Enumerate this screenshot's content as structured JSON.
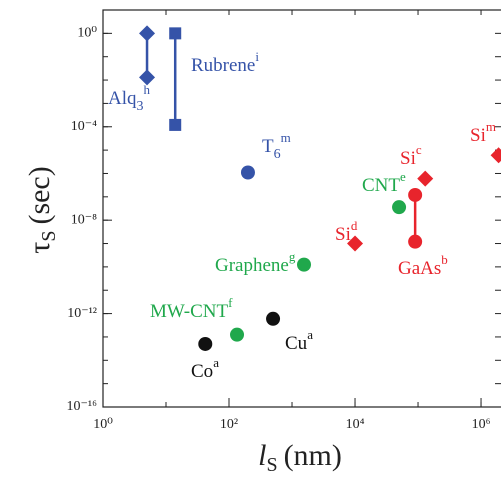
{
  "chart_data": {
    "type": "scatter",
    "log_x": true,
    "log_y": true,
    "x_label": {
      "symbol": "l",
      "subscript": "S",
      "unit": "(nm)"
    },
    "y_label": {
      "symbol": "τ",
      "subscript": "S",
      "unit": "(sec)"
    },
    "xlim": [
      1,
      2000000
    ],
    "ylim": [
      1e-16,
      10
    ],
    "xticks": [
      {
        "value": 1,
        "label": "10⁰"
      },
      {
        "value": 100,
        "label": "10²"
      },
      {
        "value": 10000,
        "label": "10⁴"
      },
      {
        "value": 1000000,
        "label": "10⁶"
      }
    ],
    "yticks": [
      {
        "value": 1,
        "label": "10⁰"
      },
      {
        "value": 0.0001,
        "label": "10⁻⁴"
      },
      {
        "value": 1e-08,
        "label": "10⁻⁸"
      },
      {
        "value": 1e-12,
        "label": "10⁻¹²"
      },
      {
        "value": 1e-16,
        "label": "10⁻¹⁶"
      }
    ],
    "series": [
      {
        "name": "Rubrene",
        "ref": "i",
        "color": "#3553a8",
        "marker": "square",
        "connect": true,
        "x": [
          14,
          14
        ],
        "values": [
          1,
          0.00012
        ]
      },
      {
        "name": "Alq",
        "sub": "3",
        "ref": "h",
        "color": "#3553a8",
        "marker": "diamond",
        "connect": true,
        "x": [
          5,
          5
        ],
        "values": [
          1,
          0.013
        ]
      },
      {
        "name": "T",
        "sub": "6",
        "ref": "m",
        "color": "#3553a8",
        "marker": "circle",
        "x": [
          200
        ],
        "values": [
          1.1e-06
        ]
      },
      {
        "name": "Graphene",
        "ref": "g",
        "color": "#20a84c",
        "marker": "circle",
        "x": [
          1550
        ],
        "values": [
          1.25e-10
        ]
      },
      {
        "name": "MW-CNT",
        "ref": "f",
        "color": "#20a84c",
        "marker": "circle",
        "x": [
          134
        ],
        "values": [
          1.25e-13
        ]
      },
      {
        "name": "Co",
        "ref": "a",
        "color": "#111111",
        "marker": "circle",
        "x": [
          42
        ],
        "values": [
          5e-14
        ]
      },
      {
        "name": "Cu",
        "ref": "a",
        "color": "#111111",
        "marker": "circle",
        "x": [
          500
        ],
        "values": [
          6e-13
        ]
      },
      {
        "name": "CNT",
        "ref": "e",
        "color": "#20a84c",
        "marker": "circle",
        "x": [
          50000
        ],
        "values": [
          3.6e-08
        ]
      },
      {
        "name": "GaAs",
        "ref": "b",
        "color": "#e8242c",
        "marker": "circle",
        "connect": true,
        "x": [
          90000,
          90000
        ],
        "values": [
          1.2e-07,
          1.2e-09
        ]
      },
      {
        "name": "Si",
        "ref": "d",
        "color": "#e8242c",
        "marker": "diamond",
        "x": [
          10000
        ],
        "values": [
          1e-09
        ]
      },
      {
        "name": "Si",
        "ref": "c",
        "color": "#e8242c",
        "marker": "diamond",
        "x": [
          130000
        ],
        "values": [
          6e-07
        ]
      },
      {
        "name": "Si",
        "ref": "m",
        "color": "#e8242c",
        "marker": "diamond",
        "x": [
          1900000
        ],
        "values": [
          6e-06
        ]
      }
    ]
  }
}
